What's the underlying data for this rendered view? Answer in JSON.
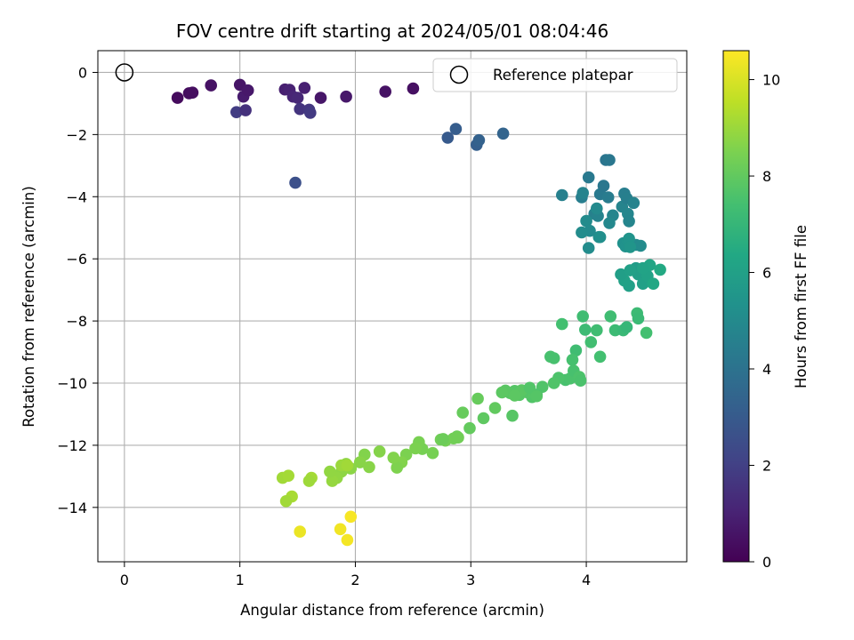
{
  "chart_data": {
    "type": "scatter",
    "title": "FOV centre drift starting at 2024/05/01 08:04:46",
    "xlabel": "Angular distance from reference (arcmin)",
    "ylabel": "Rotation from reference (arcmin)",
    "xlim": [
      -0.23,
      4.87
    ],
    "ylim": [
      -15.75,
      0.7
    ],
    "xticks": [
      0,
      1,
      2,
      3,
      4
    ],
    "yticks": [
      0,
      -2,
      -4,
      -6,
      -8,
      -10,
      -12,
      -14
    ],
    "grid": true,
    "colormap": "viridis",
    "colorbar": {
      "label": "Hours from first FF file",
      "range": [
        0,
        10.6
      ],
      "ticks": [
        0,
        2,
        4,
        6,
        8,
        10
      ]
    },
    "reference_point": {
      "x": 0,
      "y": 0
    },
    "legend": {
      "position": "top-right",
      "entries": [
        "Reference platepar"
      ]
    },
    "series": [
      {
        "x": [
          0.46,
          0.56,
          0.59,
          0.75,
          0.97,
          1.0,
          1.03,
          1.05,
          1.07,
          1.39,
          1.43,
          1.46,
          1.5,
          1.52,
          1.56,
          1.6,
          1.61,
          1.7,
          1.92,
          2.26,
          2.5,
          1.48,
          2.8,
          2.87,
          3.05,
          3.07,
          3.28,
          3.79,
          3.96,
          3.97,
          4.02,
          4.07,
          4.1,
          4.12,
          4.15,
          4.17,
          4.19,
          4.2,
          4.23,
          4.31,
          4.33,
          4.35,
          4.36,
          4.37,
          4.41,
          4.43,
          4.47,
          4.0,
          4.02,
          4.09,
          4.11,
          4.12,
          4.03,
          4.2,
          3.96,
          4.32,
          4.34,
          4.36,
          4.37,
          4.38,
          4.43,
          4.45,
          4.49,
          4.53,
          4.55,
          4.58,
          4.64,
          4.37,
          4.33,
          4.49,
          4.3,
          4.38,
          3.97,
          3.99,
          4.21,
          4.25,
          4.32,
          4.35,
          4.44,
          4.45,
          4.52,
          4.12,
          4.09,
          4.04,
          3.91,
          3.79,
          3.88,
          3.72,
          3.69,
          3.82,
          3.86,
          3.89,
          3.94,
          3.95,
          3.76,
          3.72,
          3.62,
          3.57,
          3.53,
          3.49,
          3.45,
          3.42,
          3.38,
          3.34,
          3.3,
          3.27,
          3.36,
          3.44,
          3.51,
          3.57,
          3.38,
          3.21,
          3.11,
          3.06,
          2.99,
          2.93,
          2.88,
          2.85,
          2.78,
          2.74,
          2.67,
          2.58,
          2.55,
          2.52,
          2.44,
          2.4,
          2.36,
          2.33,
          2.21,
          2.12,
          2.08,
          2.04,
          1.96,
          1.92,
          1.88,
          1.84,
          1.8,
          1.78,
          1.88,
          1.93,
          1.62,
          1.6,
          1.45,
          1.4,
          1.37,
          1.42,
          2.76,
          2.89,
          1.52,
          1.87,
          1.93,
          1.96
        ],
        "y": [
          -0.82,
          -0.67,
          -0.65,
          -0.42,
          -1.28,
          -0.4,
          -0.78,
          -1.22,
          -0.58,
          -0.55,
          -0.56,
          -0.78,
          -0.82,
          -1.18,
          -0.5,
          -1.2,
          -1.3,
          -0.82,
          -0.78,
          -0.62,
          -0.52,
          -3.55,
          -2.1,
          -1.82,
          -2.33,
          -2.18,
          -1.97,
          -3.95,
          -4.02,
          -3.88,
          -3.38,
          -4.55,
          -4.62,
          -3.92,
          -3.65,
          -2.82,
          -4.02,
          -2.82,
          -4.6,
          -4.32,
          -3.9,
          -4.05,
          -4.55,
          -4.79,
          -4.2,
          -5.55,
          -5.58,
          -4.78,
          -5.65,
          -4.38,
          -5.3,
          -5.3,
          -5.1,
          -4.85,
          -5.15,
          -5.5,
          -5.6,
          -5.44,
          -5.35,
          -5.62,
          -6.3,
          -6.5,
          -6.8,
          -6.55,
          -6.2,
          -6.8,
          -6.35,
          -6.87,
          -6.7,
          -6.3,
          -6.5,
          -6.37,
          -7.85,
          -8.28,
          -7.85,
          -8.3,
          -8.3,
          -8.2,
          -7.75,
          -7.92,
          -8.38,
          -9.15,
          -8.3,
          -8.68,
          -8.95,
          -8.1,
          -9.25,
          -9.2,
          -9.15,
          -9.9,
          -9.85,
          -9.6,
          -9.8,
          -9.92,
          -9.83,
          -10.0,
          -10.12,
          -10.37,
          -10.45,
          -10.3,
          -10.25,
          -10.38,
          -10.25,
          -10.32,
          -10.24,
          -10.3,
          -11.05,
          -10.23,
          -10.15,
          -10.42,
          -10.4,
          -10.8,
          -11.13,
          -10.5,
          -11.45,
          -10.95,
          -11.72,
          -11.78,
          -11.85,
          -11.82,
          -12.25,
          -12.12,
          -11.9,
          -12.1,
          -12.3,
          -12.55,
          -12.72,
          -12.4,
          -12.2,
          -12.7,
          -12.3,
          -12.55,
          -12.75,
          -12.6,
          -12.85,
          -13.05,
          -13.15,
          -12.85,
          -12.65,
          -12.65,
          -13.05,
          -13.15,
          -13.65,
          -13.8,
          -13.05,
          -12.98,
          -11.8,
          -11.75,
          -14.78,
          -14.7,
          -15.05,
          -14.3
        ],
        "hours": [
          0.3,
          0.35,
          0.4,
          0.5,
          1.9,
          0.6,
          0.8,
          1.5,
          0.7,
          0.9,
          1.0,
          1.1,
          1.2,
          1.6,
          0.95,
          1.7,
          1.8,
          0.65,
          0.7,
          0.5,
          0.45,
          2.6,
          3.0,
          3.1,
          3.2,
          3.3,
          3.4,
          4.6,
          4.5,
          4.7,
          4.3,
          4.6,
          4.7,
          4.3,
          4.2,
          4.1,
          4.4,
          4.2,
          4.8,
          4.75,
          4.5,
          4.55,
          4.85,
          4.8,
          4.7,
          5.0,
          5.05,
          5.05,
          5.1,
          5.0,
          5.15,
          5.2,
          5.0,
          4.9,
          5.1,
          5.3,
          5.35,
          5.4,
          5.45,
          5.5,
          5.8,
          5.9,
          6.0,
          6.1,
          6.2,
          6.3,
          6.4,
          6.0,
          6.05,
          6.15,
          5.9,
          6.0,
          7.3,
          7.2,
          7.3,
          7.2,
          7.1,
          7.0,
          7.2,
          7.15,
          7.4,
          7.4,
          7.3,
          7.35,
          7.3,
          7.4,
          7.45,
          7.5,
          7.5,
          7.5,
          7.55,
          7.5,
          7.6,
          7.55,
          7.6,
          7.65,
          7.65,
          7.6,
          7.7,
          7.75,
          7.7,
          7.8,
          7.75,
          7.8,
          7.85,
          7.9,
          7.8,
          7.85,
          7.7,
          7.75,
          7.9,
          8.0,
          7.95,
          8.1,
          8.05,
          8.1,
          8.2,
          8.3,
          8.35,
          8.3,
          8.4,
          8.4,
          8.45,
          8.5,
          8.5,
          8.6,
          8.55,
          8.6,
          8.65,
          8.7,
          8.6,
          8.7,
          8.75,
          8.8,
          8.8,
          8.85,
          8.9,
          8.85,
          9.0,
          9.1,
          9.15,
          9.05,
          9.2,
          9.1,
          9.1,
          9.15,
          8.2,
          8.3,
          10.3,
          10.4,
          10.45,
          10.5
        ]
      }
    ]
  }
}
